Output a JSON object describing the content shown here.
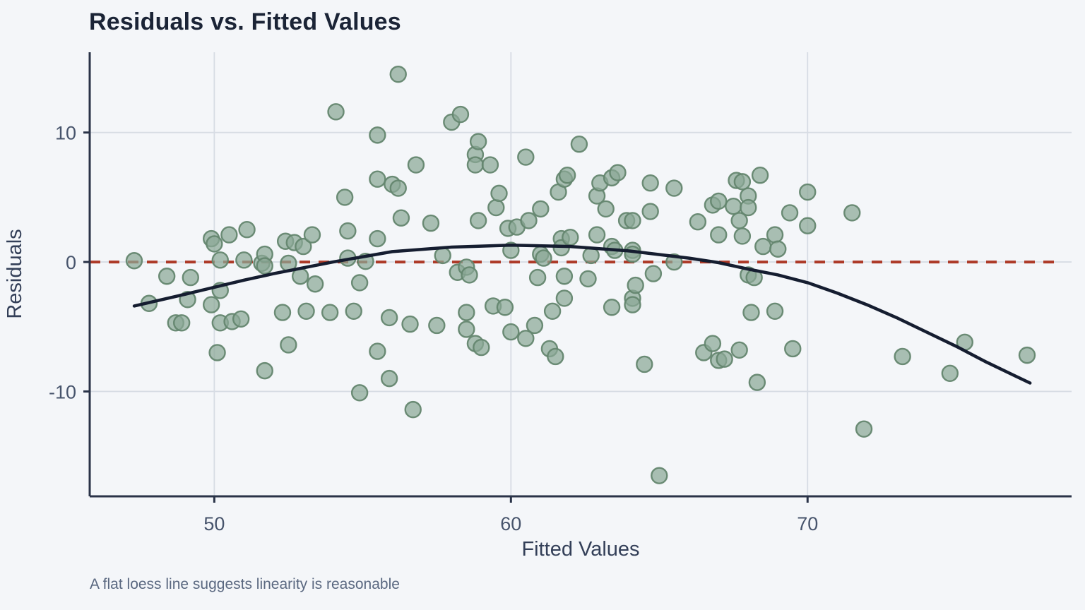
{
  "chart_data": {
    "type": "scatter",
    "title": "Residuals vs. Fitted Values",
    "xlabel": "Fitted Values",
    "ylabel": "Residuals",
    "caption": "A flat loess line suggests linearity is reasonable",
    "xlim": [
      45.8,
      78.9
    ],
    "ylim": [
      -18.1,
      16.2
    ],
    "xticks": [
      50,
      60,
      70
    ],
    "yticks": [
      -10,
      0,
      10
    ],
    "grid": true,
    "legend": "none",
    "colors": {
      "background": "#f4f6f9",
      "gridline": "#d7dce4",
      "axis_line": "#2a3348",
      "zero_line": "#ad3a28",
      "loess_line": "#151d30",
      "point_fill": "#8ba796",
      "point_stroke": "#64866f"
    },
    "zero_line": {
      "y": 0,
      "style": "dashed"
    },
    "loess_line": {
      "points": [
        [
          47.3,
          -3.4
        ],
        [
          49,
          -2.5
        ],
        [
          51,
          -1.4
        ],
        [
          52,
          -0.9
        ],
        [
          54,
          0.0
        ],
        [
          56,
          0.8
        ],
        [
          58,
          1.15
        ],
        [
          60,
          1.3
        ],
        [
          62,
          1.2
        ],
        [
          64,
          0.85
        ],
        [
          66,
          0.3
        ],
        [
          67,
          -0.05
        ],
        [
          68,
          -0.55
        ],
        [
          69,
          -1.0
        ],
        [
          70,
          -1.6
        ],
        [
          71,
          -2.4
        ],
        [
          72,
          -3.3
        ],
        [
          73,
          -4.3
        ],
        [
          74,
          -5.4
        ],
        [
          75,
          -6.5
        ],
        [
          76,
          -7.7
        ],
        [
          77,
          -8.8
        ],
        [
          77.5,
          -9.35
        ]
      ]
    },
    "points": {
      "opacity": 0.72,
      "radius": 11,
      "data": [
        [
          47.3,
          0.1
        ],
        [
          47.8,
          -3.2
        ],
        [
          48.4,
          -1.1
        ],
        [
          49.2,
          -1.2
        ],
        [
          48.7,
          -4.7
        ],
        [
          48.9,
          -4.7
        ],
        [
          49.1,
          -2.9
        ],
        [
          49.9,
          1.8
        ],
        [
          50.0,
          1.4
        ],
        [
          49.9,
          -3.3
        ],
        [
          50.1,
          -7.0
        ],
        [
          50.2,
          0.15
        ],
        [
          50.2,
          -2.2
        ],
        [
          50.2,
          -4.7
        ],
        [
          50.5,
          2.1
        ],
        [
          50.6,
          -4.6
        ],
        [
          50.9,
          -4.4
        ],
        [
          51.0,
          0.15
        ],
        [
          51.1,
          2.5
        ],
        [
          51.6,
          -0.1
        ],
        [
          51.7,
          0.6
        ],
        [
          51.7,
          -0.3
        ],
        [
          51.7,
          -8.4
        ],
        [
          52.3,
          -3.9
        ],
        [
          52.4,
          1.6
        ],
        [
          52.5,
          -0.1
        ],
        [
          52.5,
          -6.4
        ],
        [
          52.7,
          1.5
        ],
        [
          52.9,
          -1.1
        ],
        [
          53.0,
          1.2
        ],
        [
          53.1,
          -3.8
        ],
        [
          53.3,
          2.1
        ],
        [
          53.4,
          -1.7
        ],
        [
          53.9,
          -3.9
        ],
        [
          54.1,
          11.6
        ],
        [
          54.4,
          5.0
        ],
        [
          54.5,
          2.4
        ],
        [
          54.5,
          0.3
        ],
        [
          54.7,
          -3.8
        ],
        [
          54.9,
          -1.6
        ],
        [
          54.9,
          -10.1
        ],
        [
          55.1,
          0.05
        ],
        [
          55.5,
          9.8
        ],
        [
          55.5,
          6.4
        ],
        [
          55.5,
          1.8
        ],
        [
          55.5,
          -6.9
        ],
        [
          55.9,
          -4.3
        ],
        [
          55.9,
          -9.0
        ],
        [
          56.0,
          6.0
        ],
        [
          56.2,
          14.5
        ],
        [
          56.2,
          5.7
        ],
        [
          56.3,
          3.4
        ],
        [
          56.6,
          -4.8
        ],
        [
          56.7,
          -11.4
        ],
        [
          56.8,
          7.5
        ],
        [
          57.3,
          3.0
        ],
        [
          57.5,
          -4.9
        ],
        [
          57.7,
          0.5
        ],
        [
          58.0,
          10.8
        ],
        [
          58.2,
          -0.8
        ],
        [
          58.3,
          11.4
        ],
        [
          58.5,
          -0.4
        ],
        [
          58.5,
          -3.9
        ],
        [
          58.5,
          -5.2
        ],
        [
          58.6,
          -1.0
        ],
        [
          58.8,
          8.3
        ],
        [
          58.8,
          7.5
        ],
        [
          58.8,
          -6.3
        ],
        [
          58.9,
          9.3
        ],
        [
          58.9,
          3.2
        ],
        [
          59.0,
          -6.6
        ],
        [
          59.3,
          7.5
        ],
        [
          59.4,
          -3.4
        ],
        [
          59.5,
          4.2
        ],
        [
          59.6,
          5.3
        ],
        [
          59.8,
          -3.5
        ],
        [
          59.9,
          2.6
        ],
        [
          60.0,
          0.9
        ],
        [
          60.0,
          -5.4
        ],
        [
          60.2,
          2.7
        ],
        [
          60.5,
          8.1
        ],
        [
          60.5,
          -5.9
        ],
        [
          60.6,
          3.2
        ],
        [
          60.8,
          -4.9
        ],
        [
          60.9,
          -1.2
        ],
        [
          61.0,
          4.1
        ],
        [
          61.0,
          0.6
        ],
        [
          61.1,
          0.3
        ],
        [
          61.3,
          -6.7
        ],
        [
          61.4,
          -3.8
        ],
        [
          61.5,
          -7.3
        ],
        [
          61.6,
          5.4
        ],
        [
          61.7,
          1.8
        ],
        [
          61.7,
          1.1
        ],
        [
          61.8,
          6.4
        ],
        [
          61.8,
          -1.1
        ],
        [
          61.8,
          -2.8
        ],
        [
          61.9,
          6.7
        ],
        [
          62.0,
          1.9
        ],
        [
          62.3,
          9.1
        ],
        [
          62.6,
          -1.3
        ],
        [
          62.7,
          0.5
        ],
        [
          62.9,
          5.1
        ],
        [
          62.9,
          2.1
        ],
        [
          63.0,
          6.1
        ],
        [
          63.2,
          4.1
        ],
        [
          63.4,
          6.5
        ],
        [
          63.4,
          1.2
        ],
        [
          63.4,
          -3.5
        ],
        [
          63.5,
          0.9
        ],
        [
          63.6,
          6.9
        ],
        [
          63.9,
          3.2
        ],
        [
          64.1,
          3.2
        ],
        [
          64.1,
          0.9
        ],
        [
          64.1,
          0.6
        ],
        [
          64.1,
          -2.8
        ],
        [
          64.1,
          -3.3
        ],
        [
          64.2,
          -1.8
        ],
        [
          64.5,
          -7.9
        ],
        [
          64.7,
          6.1
        ],
        [
          64.7,
          3.9
        ],
        [
          64.8,
          -0.9
        ],
        [
          65.0,
          -16.5
        ],
        [
          65.5,
          5.7
        ],
        [
          65.5,
          0.0
        ],
        [
          66.3,
          3.1
        ],
        [
          66.5,
          -7.0
        ],
        [
          66.8,
          4.4
        ],
        [
          66.8,
          -6.3
        ],
        [
          67.0,
          4.7
        ],
        [
          67.0,
          2.1
        ],
        [
          67.0,
          -7.6
        ],
        [
          67.2,
          -7.5
        ],
        [
          67.5,
          4.3
        ],
        [
          67.6,
          6.3
        ],
        [
          67.7,
          3.2
        ],
        [
          67.7,
          -6.8
        ],
        [
          67.8,
          6.2
        ],
        [
          67.8,
          2.0
        ],
        [
          68.0,
          5.1
        ],
        [
          68.0,
          4.2
        ],
        [
          68.0,
          -1.0
        ],
        [
          68.2,
          -1.2
        ],
        [
          68.1,
          -3.9
        ],
        [
          68.3,
          -9.3
        ],
        [
          68.4,
          6.7
        ],
        [
          68.5,
          1.2
        ],
        [
          68.9,
          2.1
        ],
        [
          68.9,
          -3.8
        ],
        [
          69.0,
          1.0
        ],
        [
          69.4,
          3.8
        ],
        [
          69.5,
          -6.7
        ],
        [
          70.0,
          5.4
        ],
        [
          70.0,
          2.8
        ],
        [
          71.5,
          3.8
        ],
        [
          71.9,
          -12.9
        ],
        [
          73.2,
          -7.3
        ],
        [
          74.8,
          -8.6
        ],
        [
          75.3,
          -6.2
        ],
        [
          77.4,
          -7.2
        ]
      ]
    }
  }
}
